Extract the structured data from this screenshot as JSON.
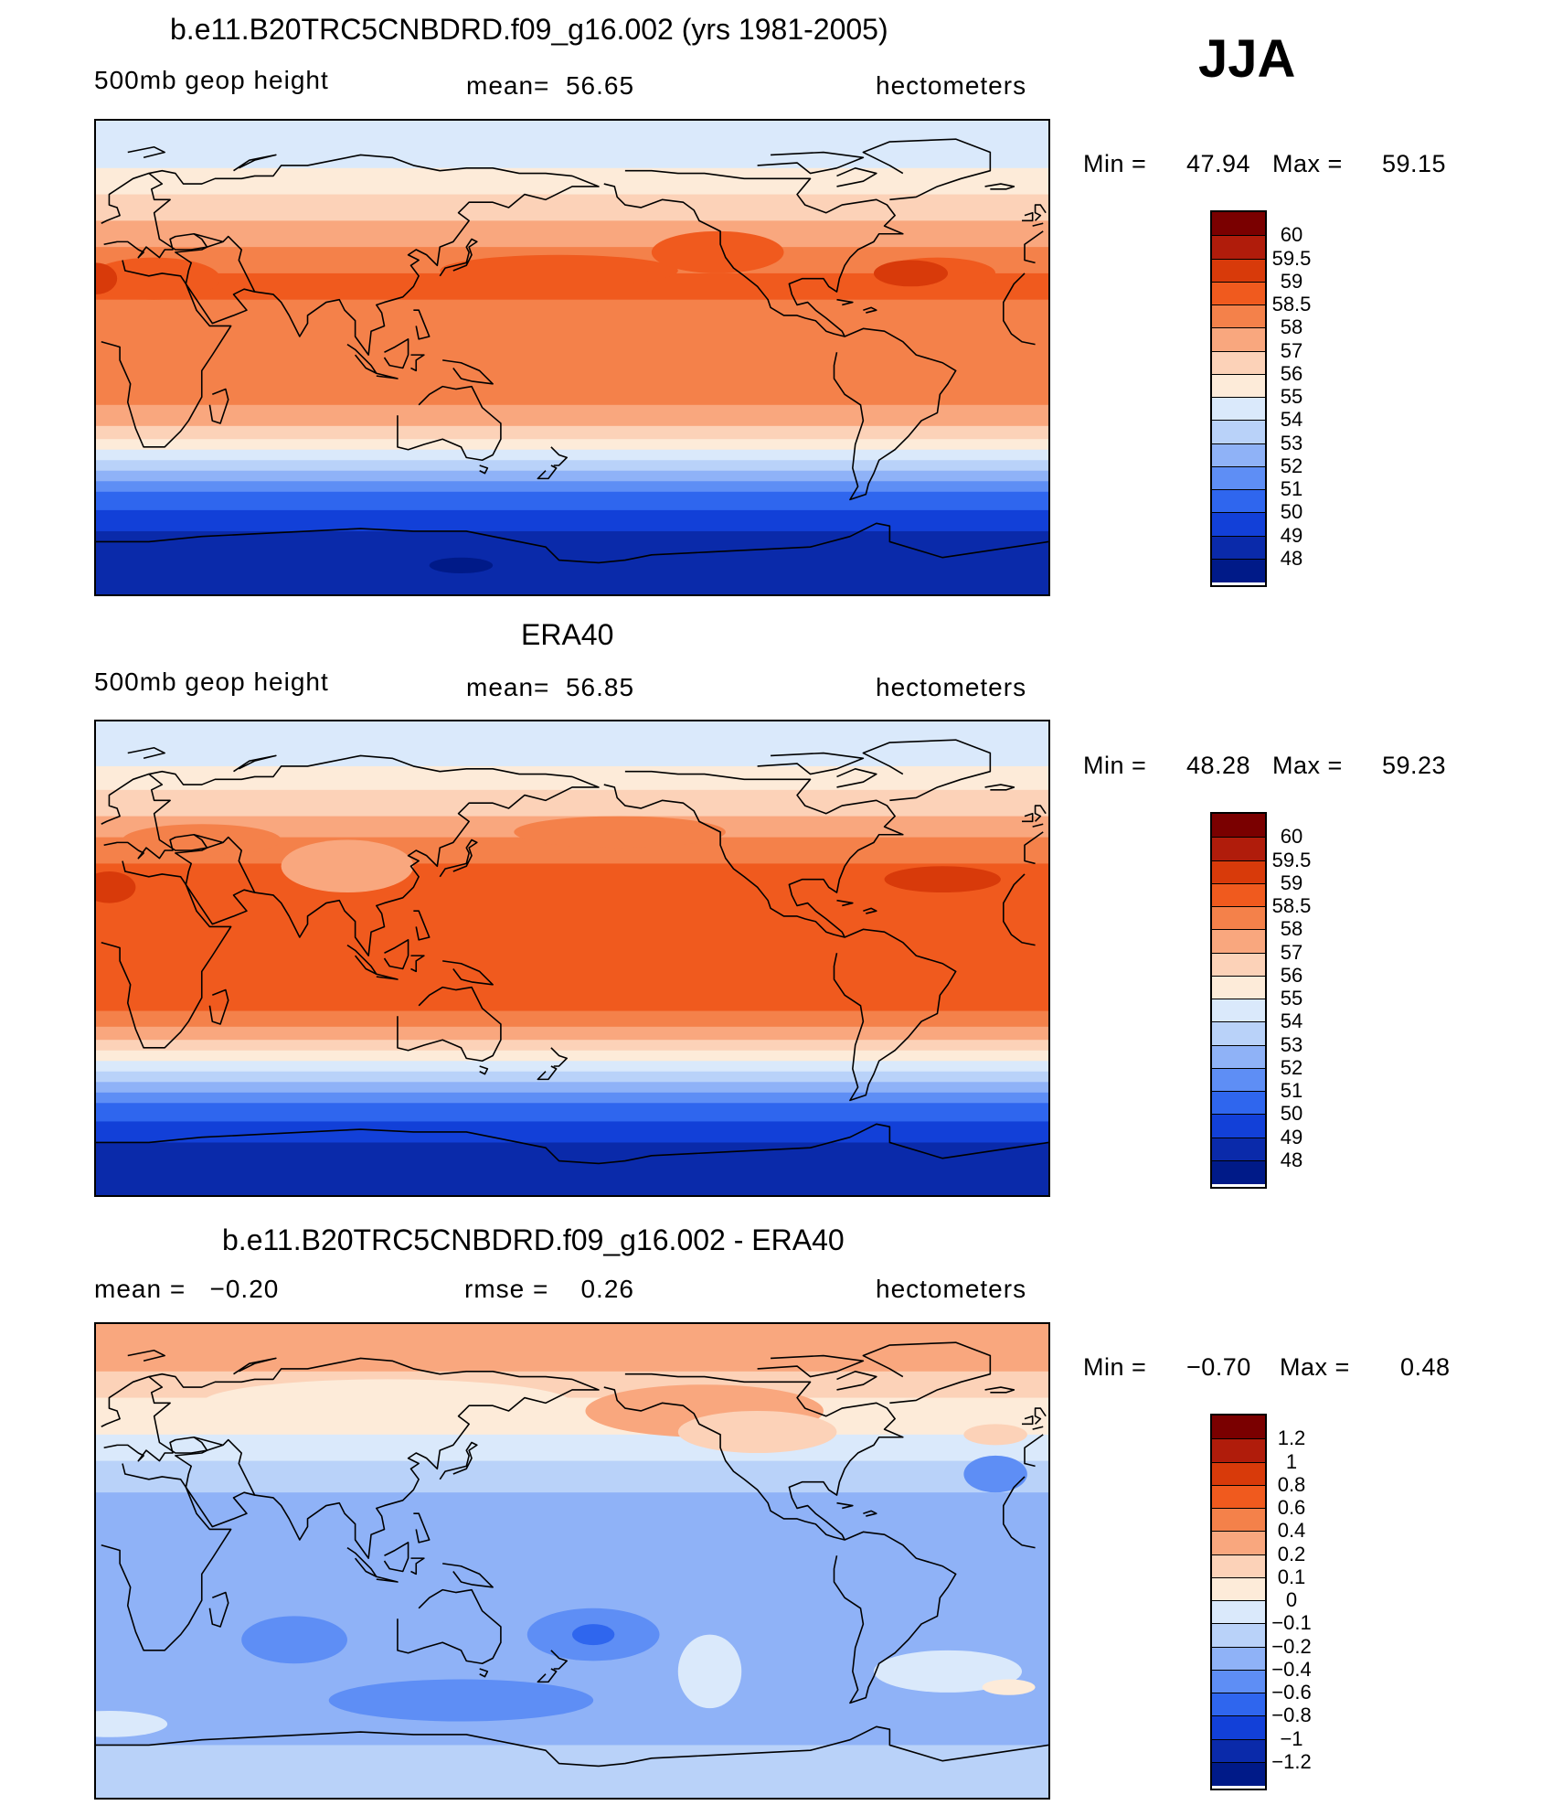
{
  "season": "JJA",
  "chart_data": [
    {
      "type": "heatmap",
      "id": "model",
      "title": "b.e11.B20TRC5CNBDRD.f09_g16.002 (yrs 1981-2005)",
      "left_label": "500mb geop height",
      "center_label": "mean=  56.65",
      "right_label": "hectometers",
      "stats": {
        "min_label": "Min =",
        "min": "47.94",
        "max_label": "Max =",
        "max": "59.15"
      },
      "colorbar": {
        "labels": [
          "60",
          "59.5",
          "59",
          "58.5",
          "58",
          "57",
          "56",
          "55",
          "54",
          "53",
          "52",
          "51",
          "50",
          "49",
          "48"
        ],
        "colors": [
          "#7a0000",
          "#b01c0b",
          "#d83a0a",
          "#f05a1e",
          "#f4814a",
          "#f9a77e",
          "#fcd2b8",
          "#fdebd9",
          "#dae9fb",
          "#b9d2f9",
          "#8fb2f7",
          "#5e8ef5",
          "#2f66ee",
          "#1240d8",
          "#0a2aaa",
          "#001a88"
        ]
      },
      "bands": [
        {
          "lat": 90,
          "c": 8
        },
        {
          "lat": 72,
          "c": 7
        },
        {
          "lat": 62,
          "c": 6
        },
        {
          "lat": 52,
          "c": 5
        },
        {
          "lat": 42,
          "c": 4
        },
        {
          "lat": 32,
          "c": 3
        },
        {
          "lat": 22,
          "c": 4
        },
        {
          "lat": -18,
          "c": 5
        },
        {
          "lat": -26,
          "c": 6
        },
        {
          "lat": -31,
          "c": 7
        },
        {
          "lat": -35,
          "c": 8
        },
        {
          "lat": -39,
          "c": 9
        },
        {
          "lat": -43,
          "c": 10
        },
        {
          "lat": -47,
          "c": 11
        },
        {
          "lat": -51,
          "c": 12
        },
        {
          "lat": -58,
          "c": 13
        },
        {
          "lat": -66,
          "c": 14
        }
      ],
      "blobs": [
        {
          "lon": 175,
          "lat": 33,
          "rx": 45,
          "ry": 6,
          "c": 3
        },
        {
          "lon": 318,
          "lat": 32,
          "rx": 22,
          "ry": 6,
          "c": 3
        },
        {
          "lon": 22,
          "lat": 30,
          "rx": 25,
          "ry": 8,
          "c": 3
        },
        {
          "lon": 0,
          "lat": 30,
          "rx": 8,
          "ry": 6,
          "c": 2
        },
        {
          "lon": 308,
          "lat": 32,
          "rx": 14,
          "ry": 5,
          "c": 2
        },
        {
          "lon": 235,
          "lat": 40,
          "rx": 25,
          "ry": 8,
          "c": 3
        },
        {
          "lon": 138,
          "lat": -79,
          "rx": 12,
          "ry": 3,
          "c": 15
        }
      ]
    },
    {
      "type": "heatmap",
      "id": "obs",
      "title": "ERA40",
      "left_label": "500mb geop height",
      "center_label": "mean=  56.85",
      "right_label": "hectometers",
      "stats": {
        "min_label": "Min =",
        "min": "48.28",
        "max_label": "Max =",
        "max": "59.23"
      },
      "colorbar": {
        "labels": [
          "60",
          "59.5",
          "59",
          "58.5",
          "58",
          "57",
          "56",
          "55",
          "54",
          "53",
          "52",
          "51",
          "50",
          "49",
          "48"
        ],
        "colors": [
          "#7a0000",
          "#b01c0b",
          "#d83a0a",
          "#f05a1e",
          "#f4814a",
          "#f9a77e",
          "#fcd2b8",
          "#fdebd9",
          "#dae9fb",
          "#b9d2f9",
          "#8fb2f7",
          "#5e8ef5",
          "#2f66ee",
          "#1240d8",
          "#0a2aaa",
          "#001a88"
        ]
      },
      "bands": [
        {
          "lat": 90,
          "c": 8
        },
        {
          "lat": 73,
          "c": 7
        },
        {
          "lat": 64,
          "c": 6
        },
        {
          "lat": 54,
          "c": 5
        },
        {
          "lat": 46,
          "c": 4
        },
        {
          "lat": 36,
          "c": 3
        },
        {
          "lat": -20,
          "c": 4
        },
        {
          "lat": -26,
          "c": 5
        },
        {
          "lat": -31,
          "c": 6
        },
        {
          "lat": -35,
          "c": 7
        },
        {
          "lat": -39,
          "c": 8
        },
        {
          "lat": -43,
          "c": 9
        },
        {
          "lat": -47,
          "c": 10
        },
        {
          "lat": -51,
          "c": 11
        },
        {
          "lat": -55,
          "c": 12
        },
        {
          "lat": -62,
          "c": 13
        },
        {
          "lat": -70,
          "c": 14
        }
      ],
      "blobs": [
        {
          "lon": 320,
          "lat": 30,
          "rx": 22,
          "ry": 5,
          "c": 2
        },
        {
          "lon": 5,
          "lat": 27,
          "rx": 10,
          "ry": 6,
          "c": 2
        },
        {
          "lon": 198,
          "lat": 48,
          "rx": 40,
          "ry": 6,
          "c": 4
        },
        {
          "lon": 40,
          "lat": 45,
          "rx": 30,
          "ry": 6,
          "c": 4
        },
        {
          "lon": 95,
          "lat": 35,
          "rx": 25,
          "ry": 10,
          "c": 5
        }
      ]
    },
    {
      "type": "heatmap",
      "id": "diff",
      "title": "b.e11.B20TRC5CNBDRD.f09_g16.002 - ERA40",
      "left_label": "mean =   −0.20",
      "center_label": "rmse =    0.26",
      "right_label": "hectometers",
      "stats": {
        "min_label": "Min =",
        "min": "−0.70",
        "max_label": "Max =",
        "max": "0.48"
      },
      "colorbar": {
        "labels": [
          "1.2",
          "1",
          "0.8",
          "0.6",
          "0.4",
          "0.2",
          "0.1",
          "0",
          "−0.1",
          "−0.2",
          "−0.4",
          "−0.6",
          "−0.8",
          "−1",
          "−1.2"
        ],
        "colors": [
          "#7a0000",
          "#b01c0b",
          "#d83a0a",
          "#f05a1e",
          "#f4814a",
          "#f9a77e",
          "#fcd2b8",
          "#fdebd9",
          "#dae9fb",
          "#b9d2f9",
          "#8fb2f7",
          "#5e8ef5",
          "#2f66ee",
          "#1240d8",
          "#0a2aaa",
          "#001a88"
        ]
      },
      "bands": [
        {
          "lat": 90,
          "c": 5
        },
        {
          "lat": 72,
          "c": 6
        },
        {
          "lat": 62,
          "c": 7
        },
        {
          "lat": 48,
          "c": 8
        },
        {
          "lat": 38,
          "c": 9
        },
        {
          "lat": 26,
          "c": 10
        },
        {
          "lat": -70,
          "c": 9
        }
      ],
      "blobs": [
        {
          "lon": 230,
          "lat": 57,
          "rx": 45,
          "ry": 10,
          "c": 5
        },
        {
          "lon": 110,
          "lat": 60,
          "rx": 70,
          "ry": 9,
          "c": 7
        },
        {
          "lon": 250,
          "lat": 49,
          "rx": 30,
          "ry": 8,
          "c": 6
        },
        {
          "lon": 340,
          "lat": 48,
          "rx": 12,
          "ry": 4,
          "c": 6
        },
        {
          "lon": 70,
          "lat": 43,
          "rx": 30,
          "ry": 4,
          "c": 8
        },
        {
          "lon": 340,
          "lat": 33,
          "rx": 12,
          "ry": 7,
          "c": 11
        },
        {
          "lon": 75,
          "lat": -30,
          "rx": 20,
          "ry": 9,
          "c": 11
        },
        {
          "lon": 188,
          "lat": -28,
          "rx": 25,
          "ry": 10,
          "c": 11
        },
        {
          "lon": 188,
          "lat": -28,
          "rx": 8,
          "ry": 4,
          "c": 12
        },
        {
          "lon": 138,
          "lat": -53,
          "rx": 50,
          "ry": 8,
          "c": 11
        },
        {
          "lon": 232,
          "lat": -42,
          "rx": 12,
          "ry": 14,
          "c": 8
        },
        {
          "lon": 322,
          "lat": -42,
          "rx": 28,
          "ry": 8,
          "c": 8
        },
        {
          "lon": 5,
          "lat": -62,
          "rx": 22,
          "ry": 5,
          "c": 8
        },
        {
          "lon": 345,
          "lat": -48,
          "rx": 10,
          "ry": 3,
          "c": 7
        }
      ]
    }
  ]
}
